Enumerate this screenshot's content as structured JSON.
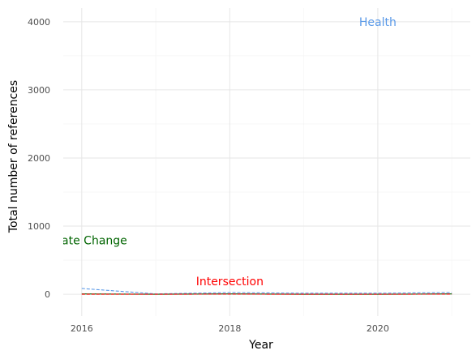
{
  "chart_data": {
    "type": "line",
    "title": "",
    "xlabel": "Year",
    "ylabel": "Total number of references",
    "xlim": [
      2015.75,
      2021.25
    ],
    "ylim": [
      -320,
      4200
    ],
    "x_ticks": [
      2016,
      2018,
      2020
    ],
    "x_tick_labels": [
      "2016",
      "2018",
      "2020"
    ],
    "y_ticks": [
      0,
      1000,
      2000,
      3000,
      4000
    ],
    "y_tick_labels": [
      "0",
      "1000",
      "2000",
      "3000",
      "4000"
    ],
    "grid": true,
    "legend": "none",
    "x": [
      2016,
      2017,
      2018,
      2019,
      2020,
      2021
    ],
    "series": [
      {
        "name": "Health",
        "color": "#5b9ae8",
        "style": "dashed",
        "values": [
          85,
          5,
          25,
          15,
          15,
          25
        ],
        "label": {
          "text": "Health",
          "x": 2020,
          "y": 4000
        }
      },
      {
        "name": "Climate Change",
        "color": "#006400",
        "style": "solid",
        "values": [
          5,
          0,
          5,
          0,
          0,
          5
        ],
        "label": {
          "text": "Climate Change",
          "x": 2016,
          "y": 790
        }
      },
      {
        "name": "Intersection",
        "color": "#ff0000",
        "style": "dashed",
        "values": [
          0,
          0,
          2,
          0,
          0,
          2
        ],
        "label": {
          "text": "Intersection",
          "x": 2018,
          "y": 190
        }
      }
    ]
  }
}
